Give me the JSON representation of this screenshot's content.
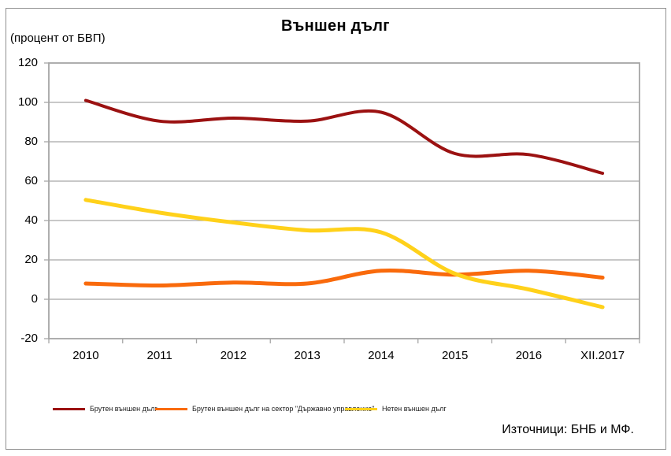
{
  "title": "Външен дълг",
  "unit_label": "(процент от БВП)",
  "source": "Източници: БНБ и МФ.",
  "colors": {
    "grid": "#a6a6a6",
    "plot_border": "#a6a6a6",
    "frame_border": "#909090",
    "series_dark_red": "#9B1111",
    "series_orange": "#F96A0C",
    "series_yellow": "#FFD11A"
  },
  "chart_data": {
    "type": "line",
    "smoothed": true,
    "title": "Външен дълг",
    "ylabel": "(процент от БВП)",
    "categories": [
      "2010",
      "2011",
      "2012",
      "2013",
      "2014",
      "2015",
      "2016",
      "XII.2017"
    ],
    "series": [
      {
        "name": "Брутен външен дълг",
        "color": "#9B1111",
        "width": 4,
        "values": [
          101,
          90.5,
          92,
          90.5,
          95,
          74,
          73.5,
          64
        ]
      },
      {
        "name": "Брутен външен дълг на сектор \"Държавно управление\"",
        "color": "#F96A0C",
        "width": 5,
        "values": [
          8,
          7,
          8.5,
          8,
          14.5,
          12.5,
          14.5,
          11
        ]
      },
      {
        "name": "Нетен външен дълг",
        "color": "#FFD11A",
        "width": 5,
        "values": [
          50.5,
          44,
          39,
          35,
          34,
          13,
          5,
          -4
        ]
      }
    ],
    "ylim": [
      -20,
      120
    ],
    "yticks": [
      120,
      100,
      80,
      60,
      40,
      20,
      0,
      -20
    ],
    "ytick_step": 20,
    "grid": "horizontal",
    "legend_position": "bottom-left",
    "source": "Източници: БНБ и МФ."
  }
}
